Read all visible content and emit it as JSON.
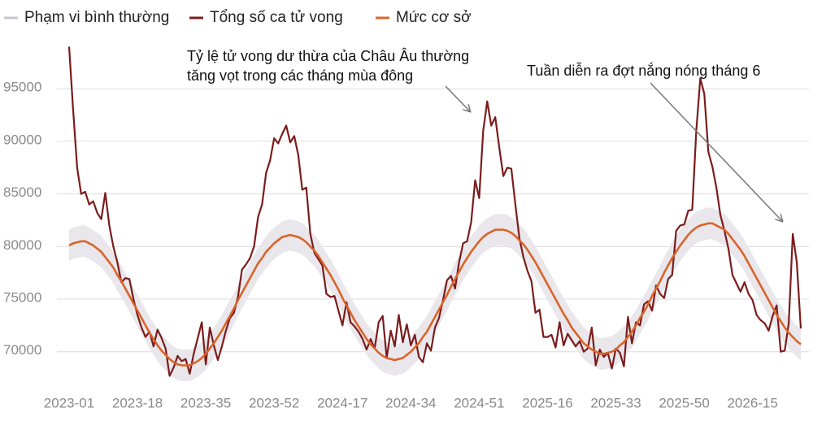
{
  "chart_data": {
    "type": "line",
    "legend": "top-left",
    "grid": true,
    "ylim": [
      66500,
      99500
    ],
    "yticks": [
      70000,
      75000,
      80000,
      85000,
      90000,
      95000
    ],
    "categories": [
      "2023-01",
      null,
      null,
      null,
      null,
      null,
      null,
      null,
      null,
      null,
      null,
      null,
      null,
      null,
      null,
      null,
      null,
      "2023-18",
      null,
      null,
      null,
      null,
      null,
      null,
      null,
      null,
      null,
      null,
      null,
      null,
      null,
      null,
      null,
      null,
      "2023-35",
      null,
      null,
      null,
      null,
      null,
      null,
      null,
      null,
      null,
      null,
      null,
      null,
      null,
      null,
      null,
      null,
      "2023-52",
      null,
      null,
      null,
      null,
      null,
      null,
      null,
      null,
      null,
      null,
      null,
      null,
      null,
      null,
      null,
      null,
      "2024-17",
      null,
      null,
      null,
      null,
      null,
      null,
      null,
      null,
      null,
      null,
      null,
      null,
      null,
      null,
      null,
      null,
      "2024-34",
      null,
      null,
      null,
      null,
      null,
      null,
      null,
      null,
      null,
      null,
      null,
      null,
      null,
      null,
      null,
      null,
      "2024-51",
      null,
      null,
      null,
      null,
      null,
      null,
      null,
      null,
      null,
      null,
      null,
      null,
      null,
      null,
      null,
      null,
      "2025-16",
      null,
      null,
      null,
      null,
      null,
      null,
      null,
      null,
      null,
      null,
      null,
      null,
      null,
      null,
      null,
      null,
      "2025-33",
      null,
      null,
      null,
      null,
      null,
      null,
      null,
      null,
      null,
      null,
      null,
      null,
      null,
      null,
      null,
      null,
      "2025-50",
      null,
      null,
      null,
      null,
      null,
      null,
      null,
      null,
      null,
      null,
      null,
      null,
      null,
      null,
      null,
      null,
      "2026-15",
      null,
      null,
      null,
      null,
      null,
      null,
      null,
      null,
      null,
      null,
      null,
      null
    ],
    "series": [
      {
        "name": "Phạm vi bình thường",
        "color": "#e9e7eb",
        "legend_color": "#c8c6cc",
        "kind": "band",
        "upper": [
          81600,
          81800,
          81900,
          82000,
          82000,
          81800,
          81600,
          81300,
          81000,
          80500,
          80000,
          79500,
          78800,
          78200,
          77500,
          76800,
          76100,
          75400,
          74700,
          74000,
          73300,
          72700,
          72100,
          71600,
          71200,
          70800,
          70500,
          70300,
          70200,
          70200,
          70200,
          70400,
          70600,
          70900,
          71300,
          71800,
          72300,
          72900,
          73500,
          74200,
          74900,
          75600,
          76400,
          77100,
          77800,
          78500,
          79200,
          79900,
          80400,
          81000,
          81400,
          81800,
          82100,
          82400,
          82500,
          82600,
          82500,
          82400,
          82200,
          81900,
          81500,
          81100,
          80600,
          80000,
          79400,
          78800,
          78100,
          77400,
          76600,
          75900,
          75200,
          74500,
          73900,
          73300,
          72700,
          72200,
          71800,
          71400,
          71100,
          70900,
          70800,
          70700,
          70800,
          70900,
          71200,
          71500,
          71900,
          72300,
          72900,
          73400,
          74100,
          74800,
          75500,
          76200,
          76900,
          77700,
          78400,
          79100,
          79800,
          80400,
          81000,
          81500,
          82000,
          82400,
          82700,
          82900,
          83100,
          83100,
          83100,
          83000,
          82800,
          82500,
          82100,
          81700,
          81200,
          80600,
          80000,
          79300,
          78600,
          77900,
          77200,
          76500,
          75800,
          75100,
          74500,
          73800,
          73300,
          72800,
          72300,
          72000,
          71700,
          71500,
          71300,
          71300,
          71400,
          71500,
          71700,
          72100,
          72400,
          72900,
          73400,
          74000,
          74700,
          75300,
          76000,
          76800,
          77500,
          78200,
          79000,
          79700,
          80400,
          81000,
          81600,
          82100,
          82600,
          83000,
          83300,
          83500,
          83600,
          83700,
          83700,
          83500,
          83300,
          83100,
          82700,
          82200,
          81700,
          81200,
          80600,
          79900,
          79200,
          78500,
          77800,
          77100,
          76400,
          75700,
          75000,
          74400,
          73800,
          73300,
          72900,
          72500,
          72200
        ],
        "lower": [
          78600,
          78800,
          78900,
          79000,
          79000,
          78800,
          78600,
          78300,
          78000,
          77500,
          77000,
          76500,
          75800,
          75200,
          74500,
          73800,
          73100,
          72400,
          71700,
          71000,
          70300,
          69700,
          69100,
          68600,
          68200,
          67800,
          67500,
          67300,
          67200,
          67200,
          67200,
          67400,
          67600,
          67900,
          68300,
          68800,
          69300,
          69900,
          70500,
          71200,
          71900,
          72600,
          73400,
          74100,
          74800,
          75500,
          76200,
          76900,
          77400,
          78000,
          78400,
          78800,
          79100,
          79400,
          79500,
          79600,
          79500,
          79400,
          79200,
          78900,
          78500,
          78100,
          77600,
          77000,
          76400,
          75800,
          75100,
          74400,
          73600,
          72900,
          72200,
          71500,
          70900,
          70300,
          69700,
          69200,
          68800,
          68400,
          68100,
          67900,
          67800,
          67700,
          67800,
          67900,
          68200,
          68500,
          68900,
          69300,
          69900,
          70400,
          71100,
          71800,
          72500,
          73200,
          73900,
          74700,
          75400,
          76100,
          76800,
          77400,
          78000,
          78500,
          79000,
          79400,
          79700,
          79900,
          80100,
          80100,
          80100,
          80000,
          79800,
          79500,
          79100,
          78700,
          78200,
          77600,
          77000,
          76300,
          75600,
          74900,
          74200,
          73500,
          72800,
          72100,
          71500,
          70800,
          70300,
          69800,
          69300,
          69000,
          68700,
          68500,
          68300,
          68300,
          68400,
          68500,
          68700,
          69100,
          69400,
          69900,
          70400,
          71000,
          71700,
          72300,
          73000,
          73800,
          74500,
          75200,
          76000,
          76700,
          77400,
          78000,
          78600,
          79100,
          79600,
          80000,
          80300,
          80500,
          80600,
          80700,
          80700,
          80500,
          80300,
          80100,
          79700,
          79200,
          78700,
          78200,
          77600,
          76900,
          76200,
          75500,
          74800,
          74100,
          73400,
          72700,
          72000,
          71400,
          70800,
          70300,
          69900,
          69500,
          69200
        ]
      },
      {
        "name": "Tổng số ca tử vong",
        "color": "#7b1c1c",
        "kind": "line",
        "values": [
          99000,
          93000,
          87500,
          85000,
          85200,
          84000,
          84300,
          83200,
          82600,
          85100,
          82000,
          80000,
          78500,
          76600,
          77000,
          76900,
          75000,
          73500,
          72300,
          71400,
          71900,
          70500,
          72100,
          71300,
          70300,
          67700,
          68500,
          69600,
          69100,
          69300,
          67900,
          69800,
          71300,
          72800,
          68800,
          72300,
          70600,
          69200,
          70500,
          72000,
          73200,
          73700,
          75200,
          77800,
          78300,
          78900,
          80000,
          82800,
          84000,
          87000,
          88200,
          90300,
          89800,
          90700,
          91500,
          89900,
          90500,
          88700,
          85400,
          85600,
          81200,
          79400,
          78800,
          78200,
          75500,
          75200,
          75300,
          73900,
          72500,
          74700,
          72800,
          72400,
          71900,
          71200,
          70200,
          71200,
          70300,
          72800,
          73400,
          69400,
          72000,
          70500,
          73500,
          70900,
          72600,
          70600,
          71600,
          69500,
          69000,
          70800,
          70100,
          72300,
          73200,
          74900,
          76800,
          77200,
          76000,
          78500,
          80300,
          80500,
          82300,
          86300,
          84600,
          91000,
          93800,
          91500,
          92300,
          89400,
          86700,
          87500,
          87400,
          84000,
          80800,
          79000,
          77700,
          76700,
          73700,
          74000,
          71400,
          71400,
          71600,
          70400,
          72800,
          70600,
          71700,
          71100,
          70500,
          71000,
          70000,
          70300,
          72300,
          68700,
          70200,
          69500,
          69900,
          68400,
          70300,
          69900,
          68600,
          73300,
          70800,
          72800,
          72500,
          74500,
          74800,
          73900,
          76300,
          75500,
          75100,
          76900,
          77300,
          81500,
          82000,
          82100,
          83400,
          83500,
          91000,
          96000,
          94500,
          89000,
          87600,
          85600,
          83000,
          81500,
          79800,
          77300,
          76500,
          75700,
          76600,
          75500,
          74900,
          73500,
          73000,
          72700,
          72000,
          73400,
          74400,
          70000,
          70100,
          72700,
          81200,
          78500,
          72200
        ]
      },
      {
        "name": "Mức cơ sở",
        "color": "#d9642a",
        "kind": "line",
        "values": [
          80100,
          80300,
          80400,
          80500,
          80500,
          80300,
          80100,
          79800,
          79500,
          79000,
          78500,
          78000,
          77300,
          76700,
          76000,
          75300,
          74600,
          73900,
          73200,
          72500,
          71800,
          71200,
          70600,
          70100,
          69700,
          69300,
          69000,
          68800,
          68700,
          68700,
          68700,
          68900,
          69100,
          69400,
          69800,
          70300,
          70800,
          71400,
          72000,
          72700,
          73400,
          74100,
          74900,
          75600,
          76300,
          77000,
          77700,
          78400,
          78900,
          79500,
          79900,
          80300,
          80600,
          80900,
          81000,
          81100,
          81000,
          80900,
          80700,
          80400,
          80000,
          79600,
          79100,
          78500,
          77900,
          77300,
          76600,
          75900,
          75100,
          74400,
          73700,
          73000,
          72400,
          71800,
          71200,
          70700,
          70300,
          69900,
          69600,
          69400,
          69300,
          69200,
          69300,
          69400,
          69700,
          70000,
          70400,
          70800,
          71400,
          71900,
          72600,
          73300,
          74000,
          74700,
          75400,
          76200,
          76900,
          77600,
          78300,
          78900,
          79500,
          80000,
          80500,
          80900,
          81200,
          81400,
          81600,
          81600,
          81600,
          81500,
          81300,
          81000,
          80600,
          80200,
          79700,
          79100,
          78500,
          77800,
          77100,
          76400,
          75700,
          75000,
          74300,
          73600,
          73000,
          72300,
          71800,
          71300,
          70800,
          70500,
          70200,
          70000,
          69800,
          69800,
          69900,
          70000,
          70200,
          70600,
          70900,
          71400,
          71900,
          72500,
          73200,
          73800,
          74500,
          75300,
          76000,
          76700,
          77500,
          78200,
          78900,
          79500,
          80100,
          80600,
          81100,
          81500,
          81800,
          82000,
          82100,
          82200,
          82200,
          82000,
          81800,
          81600,
          81200,
          80700,
          80200,
          79700,
          79100,
          78400,
          77700,
          77000,
          76300,
          75600,
          74900,
          74200,
          73500,
          72900,
          72300,
          71800,
          71400,
          71000,
          70700
        ]
      }
    ],
    "annotations": [
      {
        "lines": [
          "Tỷ lệ tử vong dư thừa của Châu Âu thường",
          "tăng vọt trong các tháng mùa đông"
        ]
      },
      {
        "lines": [
          "Tuần diễn ra đợt nắng nóng tháng 6"
        ]
      }
    ]
  }
}
